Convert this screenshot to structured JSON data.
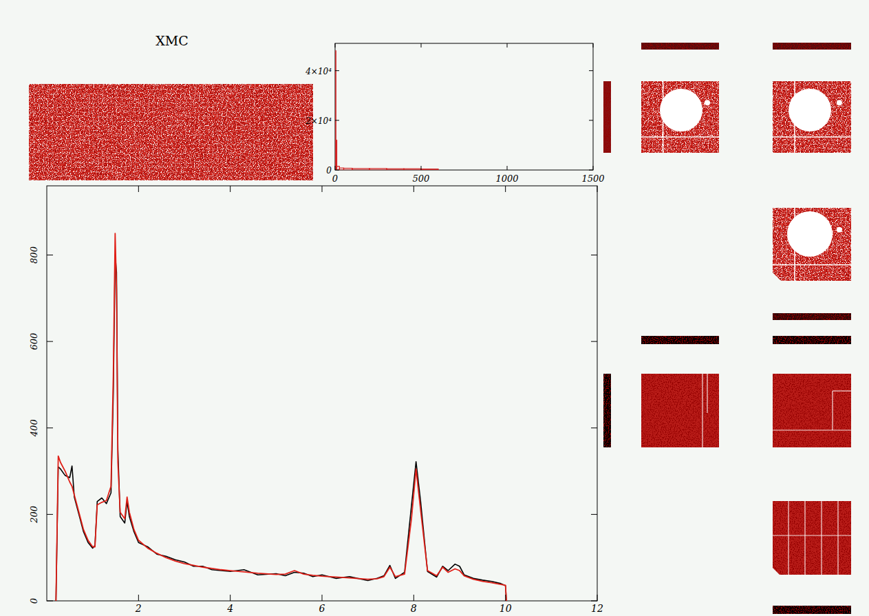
{
  "image_panel": {
    "title": "XMC"
  },
  "chart_data": [
    {
      "type": "histogram",
      "color": "#d42020",
      "bins": [
        0,
        5,
        10,
        25,
        50,
        100,
        200,
        300,
        400,
        500,
        600
      ],
      "values": [
        48000,
        12000,
        1500,
        800,
        700,
        600,
        600,
        500,
        500,
        400
      ],
      "xlim": [
        0,
        1500
      ],
      "xticks": [
        0,
        500,
        1000,
        1500
      ],
      "ylim": [
        0,
        51000
      ],
      "yticks": [
        0,
        {
          "value": 20000,
          "label": "2×10⁴"
        },
        {
          "value": 40000,
          "label": "4×10⁴"
        }
      ]
    },
    {
      "type": "line",
      "x": [
        0.2,
        0.25,
        0.3,
        0.4,
        0.5,
        0.55,
        0.6,
        0.7,
        0.8,
        0.9,
        1.0,
        1.05,
        1.1,
        1.2,
        1.3,
        1.4,
        1.45,
        1.49,
        1.52,
        1.55,
        1.6,
        1.7,
        1.75,
        1.8,
        1.9,
        2.0,
        2.2,
        2.4,
        2.6,
        2.8,
        3.0,
        3.2,
        3.4,
        3.6,
        3.8,
        4.0,
        4.3,
        4.6,
        5.0,
        5.2,
        5.4,
        5.6,
        5.8,
        6.0,
        6.3,
        6.6,
        7.0,
        7.2,
        7.35,
        7.48,
        7.6,
        7.8,
        7.95,
        8.05,
        8.15,
        8.3,
        8.5,
        8.63,
        8.75,
        8.9,
        9.0,
        9.1,
        9.3,
        9.5,
        9.7,
        9.9,
        10.0,
        10.02
      ],
      "series": [
        {
          "color": "#000000",
          "values": [
            0,
            310,
            305,
            290,
            285,
            312,
            240,
            200,
            160,
            135,
            122,
            128,
            230,
            238,
            225,
            250,
            480,
            800,
            760,
            350,
            195,
            180,
            230,
            195,
            160,
            135,
            125,
            108,
            103,
            95,
            90,
            80,
            80,
            72,
            70,
            68,
            72,
            60,
            63,
            58,
            66,
            64,
            56,
            60,
            52,
            56,
            47,
            52,
            58,
            82,
            52,
            66,
            220,
            322,
            230,
            68,
            55,
            80,
            70,
            85,
            80,
            60,
            52,
            48,
            45,
            40,
            35,
            0
          ]
        },
        {
          "color": "#e02018",
          "values": [
            0,
            335,
            320,
            300,
            275,
            265,
            245,
            205,
            165,
            140,
            125,
            125,
            222,
            228,
            232,
            265,
            520,
            850,
            720,
            320,
            205,
            190,
            240,
            205,
            165,
            140,
            122,
            110,
            100,
            92,
            86,
            82,
            78,
            75,
            72,
            70,
            67,
            64,
            61,
            62,
            70,
            62,
            59,
            57,
            55,
            53,
            50,
            51,
            56,
            78,
            56,
            62,
            190,
            305,
            210,
            70,
            58,
            78,
            66,
            74,
            70,
            58,
            50,
            45,
            42,
            38,
            36,
            0
          ]
        }
      ],
      "xlim": [
        0,
        12
      ],
      "xticks": [
        2,
        4,
        6,
        8,
        10,
        12
      ],
      "ylim": [
        0,
        960
      ],
      "yticks": [
        0,
        200,
        400,
        600,
        800
      ]
    }
  ]
}
